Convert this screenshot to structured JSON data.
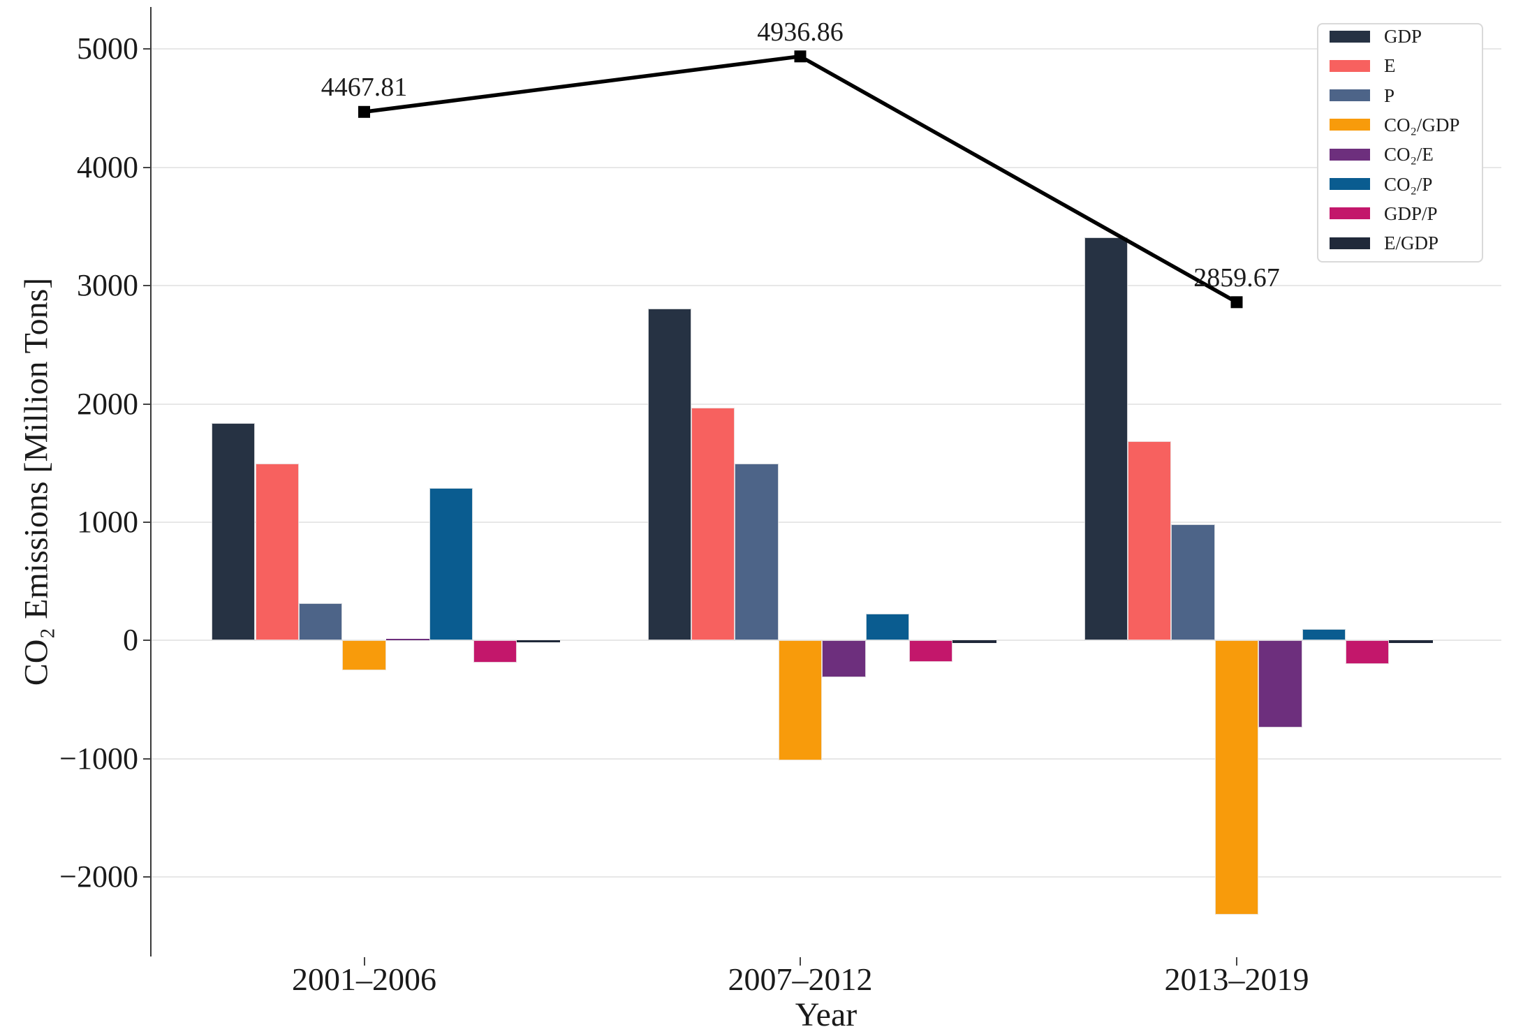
{
  "chart_data": {
    "type": "grouped-bar-with-line",
    "categories": [
      "2001–2006",
      "2007–2012",
      "2013–2019"
    ],
    "series": [
      {
        "name": "GDP",
        "color": "#263243",
        "values": [
          1835,
          2805,
          3405
        ]
      },
      {
        "name": "E",
        "color": "#f7615f",
        "values": [
          1495,
          1965,
          1685
        ]
      },
      {
        "name": "P",
        "color": "#4d6488",
        "values": [
          315,
          1495,
          985
        ]
      },
      {
        "name": "CO₂/GDP",
        "color": "#f89b0b",
        "values": [
          -250,
          -1010,
          -2315
        ]
      },
      {
        "name": "CO₂/E",
        "color": "#6d2f7d",
        "values": [
          15,
          -310,
          -735
        ]
      },
      {
        "name": "CO₂/P",
        "color": "#0a5c90",
        "values": [
          1290,
          230,
          95
        ]
      },
      {
        "name": "GDP/P",
        "color": "#c3176b",
        "values": [
          -185,
          -180,
          -195
        ]
      },
      {
        "name": "E/GDP",
        "color": "#20293a",
        "values": [
          -15,
          -20,
          -20
        ]
      }
    ],
    "line": {
      "color": "#000000",
      "values": [
        4467.81,
        4936.86,
        2859.67
      ],
      "labels": [
        "4467.81",
        "4936.86",
        "2859.67"
      ]
    },
    "xlabel": "Year",
    "ylabel": "CO₂ Emissions [Million Tons]",
    "ylim": [
      -2670,
      5325
    ],
    "yticks": [
      {
        "value": 5000,
        "label": "5000"
      },
      {
        "value": 4000,
        "label": "4000"
      },
      {
        "value": 3000,
        "label": "3000"
      },
      {
        "value": 2000,
        "label": "2000"
      },
      {
        "value": 1000,
        "label": "1000"
      },
      {
        "value": 0,
        "label": "0"
      },
      {
        "value": -1000,
        "label": "−1000"
      },
      {
        "value": -2000,
        "label": "−2000"
      }
    ],
    "grid": "horizontal",
    "legend_position": "upper right"
  }
}
